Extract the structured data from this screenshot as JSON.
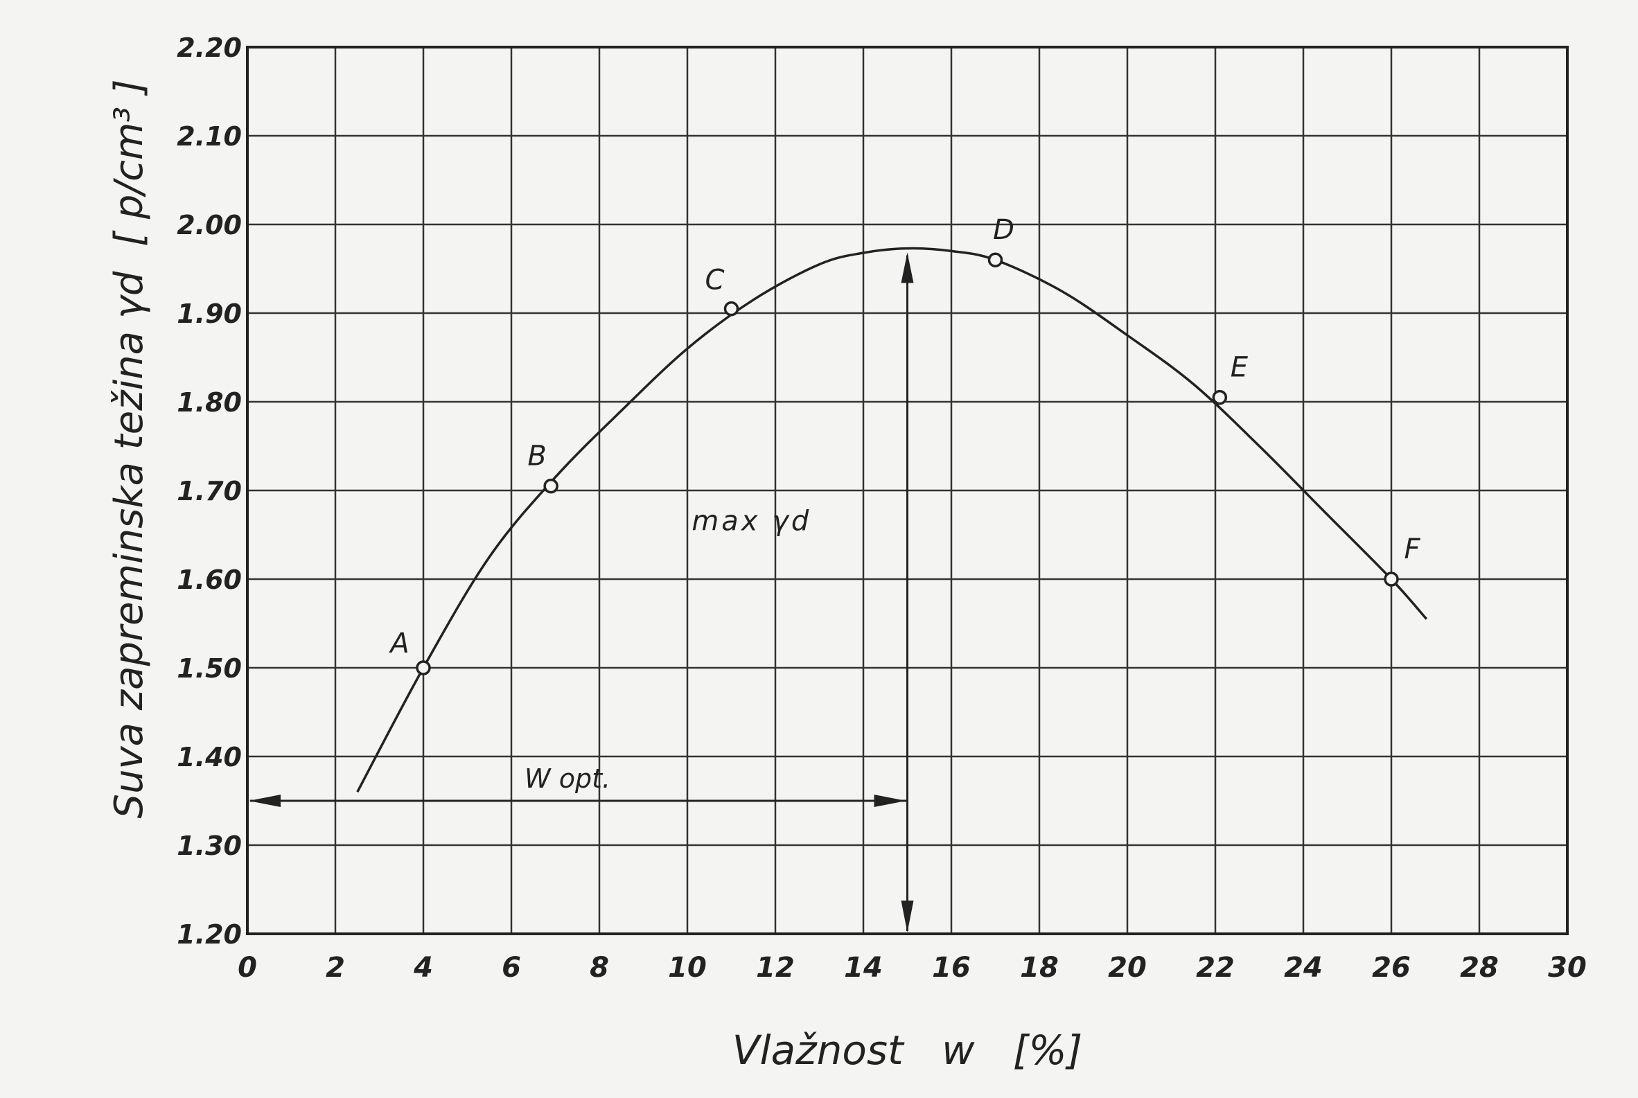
{
  "chart_data": {
    "type": "line",
    "xlabel": "Vlažnost   w   [%]",
    "ylabel": "Suva zapreminska težina γd  [ p/cm³ ]",
    "xlim": [
      0,
      30
    ],
    "ylim": [
      1.2,
      2.2
    ],
    "grid": true,
    "x_ticks": [
      "0",
      "2",
      "4",
      "6",
      "8",
      "10",
      "12",
      "14",
      "16",
      "18",
      "20",
      "22",
      "24",
      "26",
      "28",
      "30"
    ],
    "y_ticks": [
      "1.20",
      "1.30",
      "1.40",
      "1.50",
      "1.60",
      "1.70",
      "1.80",
      "1.90",
      "2.00",
      "2.10",
      "2.20"
    ],
    "points": [
      {
        "label": "A",
        "x": 4.0,
        "y": 1.5
      },
      {
        "label": "B",
        "x": 6.9,
        "y": 1.705
      },
      {
        "label": "C",
        "x": 11.0,
        "y": 1.905
      },
      {
        "label": "D",
        "x": 17.0,
        "y": 1.96
      },
      {
        "label": "E",
        "x": 22.1,
        "y": 1.805
      },
      {
        "label": "F",
        "x": 26.0,
        "y": 1.6
      }
    ],
    "curve": {
      "x": [
        2.5,
        4.0,
        5.5,
        7.0,
        8.5,
        10.0,
        11.5,
        13.0,
        14.0,
        15.0,
        16.0,
        17.0,
        18.5,
        20.0,
        21.5,
        23.0,
        24.5,
        26.0,
        26.8
      ],
      "y": [
        1.36,
        1.5,
        1.625,
        1.715,
        1.79,
        1.86,
        1.915,
        1.955,
        1.968,
        1.973,
        1.97,
        1.96,
        1.925,
        1.875,
        1.82,
        1.75,
        1.675,
        1.6,
        1.555
      ]
    },
    "annotations": {
      "max_label": "max γd",
      "wopt_label": "W opt.",
      "optimum": {
        "x": 15.0,
        "y": 1.973
      },
      "wopt_arrow_y": 1.35
    }
  }
}
